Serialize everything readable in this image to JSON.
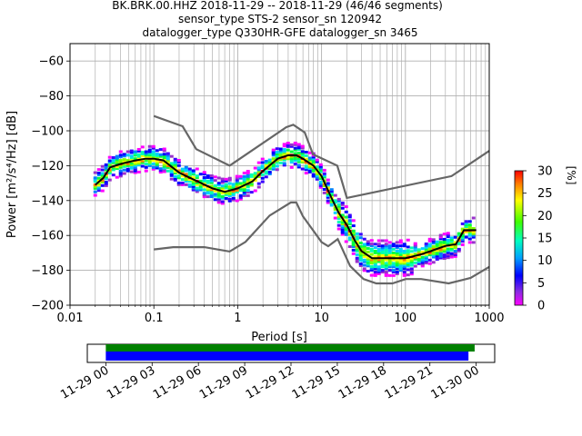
{
  "chart_data": [
    {
      "type": "heatmap",
      "title_lines": [
        "BK.BRK.00.HHZ   2018-11-29 -- 2018-11-29  (46/46 segments)",
        "sensor_type STS-2 sensor_sn 120942",
        "datalogger_type Q330HR-GFE datalogger_sn 3465"
      ],
      "xlabel": "Period [s]",
      "ylabel": "Power [m²/s⁴/Hz] [dB]",
      "x_scale": "log",
      "xlim": [
        0.01,
        1000
      ],
      "ylim": [
        -200,
        -50
      ],
      "x_ticks": [
        0.01,
        0.1,
        1,
        10,
        100,
        1000
      ],
      "x_tick_labels": [
        "0.01",
        "0.1",
        "1",
        "10",
        "100",
        "1000"
      ],
      "y_ticks": [
        -200,
        -180,
        -160,
        -140,
        -120,
        -100,
        -80,
        -60
      ],
      "y_tick_labels": [
        "−200",
        "−180",
        "−160",
        "−140",
        "−120",
        "−100",
        "−80",
        "−60"
      ],
      "grid": true,
      "mean_psd": [
        [
          0.02,
          -131
        ],
        [
          0.025,
          -127
        ],
        [
          0.03,
          -121
        ],
        [
          0.04,
          -119
        ],
        [
          0.06,
          -117
        ],
        [
          0.08,
          -116
        ],
        [
          0.1,
          -116
        ],
        [
          0.13,
          -117
        ],
        [
          0.2,
          -124
        ],
        [
          0.3,
          -128
        ],
        [
          0.5,
          -133
        ],
        [
          0.7,
          -135
        ],
        [
          1,
          -133
        ],
        [
          1.5,
          -129
        ],
        [
          2,
          -123
        ],
        [
          3,
          -116
        ],
        [
          4,
          -114
        ],
        [
          5,
          -114
        ],
        [
          6,
          -116
        ],
        [
          8,
          -120
        ],
        [
          10,
          -126
        ],
        [
          13,
          -138
        ],
        [
          16,
          -147
        ],
        [
          20,
          -154
        ],
        [
          25,
          -163
        ],
        [
          30,
          -169
        ],
        [
          40,
          -173
        ],
        [
          60,
          -173
        ],
        [
          80,
          -173
        ],
        [
          100,
          -173
        ],
        [
          150,
          -171
        ],
        [
          200,
          -169
        ],
        [
          300,
          -166
        ],
        [
          400,
          -165
        ],
        [
          500,
          -157
        ],
        [
          700,
          -157
        ]
      ],
      "high_noise_model": [
        [
          0.1,
          -91.5
        ],
        [
          0.22,
          -97.4
        ],
        [
          0.32,
          -110.5
        ],
        [
          0.8,
          -120
        ],
        [
          3.8,
          -97.9
        ],
        [
          4.6,
          -96.5
        ],
        [
          6.3,
          -101
        ],
        [
          7.9,
          -113.5
        ],
        [
          15.4,
          -120
        ],
        [
          20,
          -138.5
        ],
        [
          354.8,
          -126
        ],
        [
          1000,
          -111.5
        ]
      ],
      "low_noise_model": [
        [
          0.1,
          -168
        ],
        [
          0.17,
          -166.7
        ],
        [
          0.4,
          -166.7
        ],
        [
          0.8,
          -169.2
        ],
        [
          1.24,
          -163.7
        ],
        [
          2.4,
          -148.6
        ],
        [
          4.3,
          -141.1
        ],
        [
          5,
          -141.1
        ],
        [
          6,
          -149
        ],
        [
          10,
          -163.8
        ],
        [
          12,
          -166.2
        ],
        [
          15.6,
          -162.1
        ],
        [
          21.9,
          -177.5
        ],
        [
          31.6,
          -185
        ],
        [
          45,
          -187.5
        ],
        [
          70,
          -187.5
        ],
        [
          101,
          -185
        ],
        [
          154,
          -185
        ],
        [
          328,
          -187.5
        ],
        [
          600,
          -184.4
        ],
        [
          1000,
          -178
        ]
      ],
      "colorbar": {
        "label": "[%]",
        "min": 0,
        "max": 30,
        "ticks": [
          0,
          5,
          10,
          15,
          20,
          25,
          30
        ],
        "tick_labels": [
          "0",
          "5",
          "10",
          "15",
          "20",
          "25",
          "30"
        ]
      }
    },
    {
      "type": "bar",
      "title": "",
      "x_tick_labels": [
        "11-29 00",
        "11-29 03",
        "11-29 06",
        "11-29 09",
        "11-29 12",
        "11-29 15",
        "11-29 18",
        "11-29 21",
        "11-30 00"
      ],
      "x_tick_hours": [
        0,
        3,
        6,
        9,
        12,
        15,
        18,
        21,
        24
      ],
      "xlim_hours": [
        -1.2,
        25.2
      ],
      "series": [
        {
          "color": "#008000",
          "start_hour": 0,
          "end_hour": 23.9
        },
        {
          "color": "#0000ff",
          "start_hour": 0,
          "end_hour": 23.5
        }
      ]
    }
  ]
}
